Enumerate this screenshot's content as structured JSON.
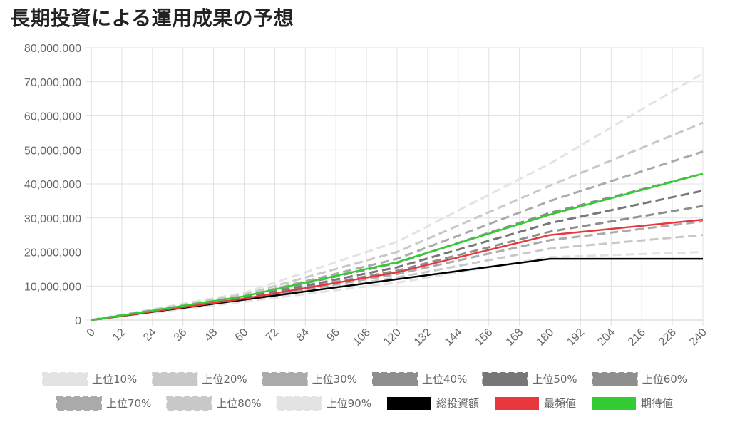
{
  "title": "長期投資による運用成果の予想",
  "chart_data": {
    "type": "line",
    "title": "長期投資による運用成果の予想",
    "xlabel": "",
    "ylabel": "",
    "xlim": [
      0,
      240
    ],
    "ylim": [
      0,
      80000000
    ],
    "x_ticks": [
      0,
      12,
      24,
      36,
      48,
      60,
      72,
      84,
      96,
      108,
      120,
      132,
      144,
      156,
      168,
      180,
      192,
      204,
      216,
      228,
      240
    ],
    "y_ticks": [
      0,
      10000000,
      20000000,
      30000000,
      40000000,
      50000000,
      60000000,
      70000000,
      80000000
    ],
    "y_tick_labels": [
      "0",
      "10,000,000",
      "20,000,000",
      "30,000,000",
      "40,000,000",
      "50,000,000",
      "60,000,000",
      "70,000,000",
      "80,000,000"
    ],
    "grid": true,
    "legend_position": "bottom",
    "series": [
      {
        "name": "上位10%",
        "color": "#e3e3e3",
        "dashed": true,
        "x": [
          0,
          60,
          120,
          180,
          240
        ],
        "values": [
          0,
          8000000,
          23000000,
          46000000,
          72500000
        ]
      },
      {
        "name": "上位20%",
        "color": "#c8c8c8",
        "dashed": true,
        "x": [
          0,
          60,
          120,
          180,
          240
        ],
        "values": [
          0,
          7500000,
          20000000,
          39500000,
          58000000
        ]
      },
      {
        "name": "上位30%",
        "color": "#aaaaaa",
        "dashed": true,
        "x": [
          0,
          60,
          120,
          180,
          240
        ],
        "values": [
          0,
          7000000,
          18000000,
          35000000,
          49500000
        ]
      },
      {
        "name": "上位40%",
        "color": "#8e8e8e",
        "dashed": true,
        "x": [
          0,
          60,
          120,
          180,
          240
        ],
        "values": [
          0,
          6800000,
          16800000,
          31500000,
          43000000
        ]
      },
      {
        "name": "上位50%",
        "color": "#777777",
        "dashed": true,
        "x": [
          0,
          60,
          120,
          180,
          240
        ],
        "values": [
          0,
          6500000,
          15500000,
          28500000,
          38000000
        ]
      },
      {
        "name": "上位60%",
        "color": "#8e8e8e",
        "dashed": true,
        "x": [
          0,
          60,
          120,
          180,
          240
        ],
        "values": [
          0,
          6200000,
          14500000,
          26000000,
          33500000
        ]
      },
      {
        "name": "上位70%",
        "color": "#aaaaaa",
        "dashed": true,
        "x": [
          0,
          60,
          120,
          180,
          240
        ],
        "values": [
          0,
          6000000,
          13500000,
          23500000,
          29000000
        ]
      },
      {
        "name": "上位80%",
        "color": "#c8c8c8",
        "dashed": true,
        "x": [
          0,
          60,
          120,
          180,
          240
        ],
        "values": [
          0,
          5700000,
          12500000,
          21000000,
          25000000
        ]
      },
      {
        "name": "上位90%",
        "color": "#e3e3e3",
        "dashed": true,
        "x": [
          0,
          60,
          120,
          180,
          240
        ],
        "values": [
          0,
          5400000,
          11000000,
          18500000,
          20000000
        ]
      },
      {
        "name": "総投資額",
        "color": "#000000",
        "dashed": false,
        "x": [
          0,
          180,
          240
        ],
        "values": [
          0,
          18000000,
          18000000
        ]
      },
      {
        "name": "最頻値",
        "color": "#e8383d",
        "dashed": false,
        "x": [
          0,
          60,
          120,
          180,
          240
        ],
        "values": [
          0,
          6300000,
          14000000,
          25000000,
          29500000
        ]
      },
      {
        "name": "期待値",
        "color": "#33cc33",
        "dashed": false,
        "x": [
          0,
          60,
          120,
          180,
          240
        ],
        "values": [
          0,
          7000000,
          17000000,
          31000000,
          43000000
        ]
      }
    ]
  }
}
